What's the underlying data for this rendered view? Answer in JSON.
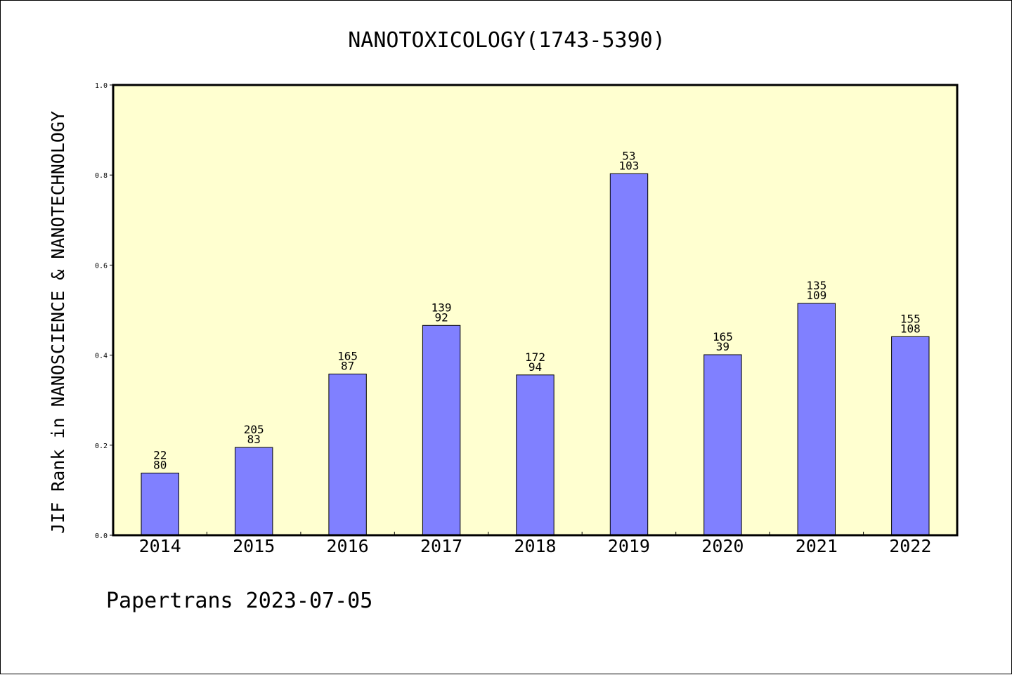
{
  "chart_data": {
    "type": "bar",
    "title": "NANOTOXICOLOGY(1743-5390)",
    "xlabel": "",
    "ylabel": "JIF Rank in NANOSCIENCE & NANOTECHNOLOGY",
    "ylim": [
      0,
      1.0
    ],
    "yticks": [
      "0.0",
      "0.2",
      "0.4",
      "0.6",
      "0.8",
      "1.0"
    ],
    "categories": [
      "2014",
      "2015",
      "2016",
      "2017",
      "2018",
      "2019",
      "2020",
      "2021",
      "2022"
    ],
    "values": [
      0.138,
      0.195,
      0.358,
      0.466,
      0.356,
      0.803,
      0.401,
      0.515,
      0.441
    ],
    "rank_labels": [
      "22",
      "205",
      "165",
      "139",
      "172",
      "53",
      "165",
      "135",
      "155"
    ],
    "total_labels": [
      "80",
      "83",
      "87",
      "92",
      "94",
      "103",
      "39",
      "109",
      "108"
    ],
    "grid": false,
    "colors": {
      "bar": "#8080ff",
      "plot_background": "#ffffd0",
      "axis": "#000000"
    }
  },
  "footer": {
    "text": "Papertrans 2023-07-05"
  }
}
